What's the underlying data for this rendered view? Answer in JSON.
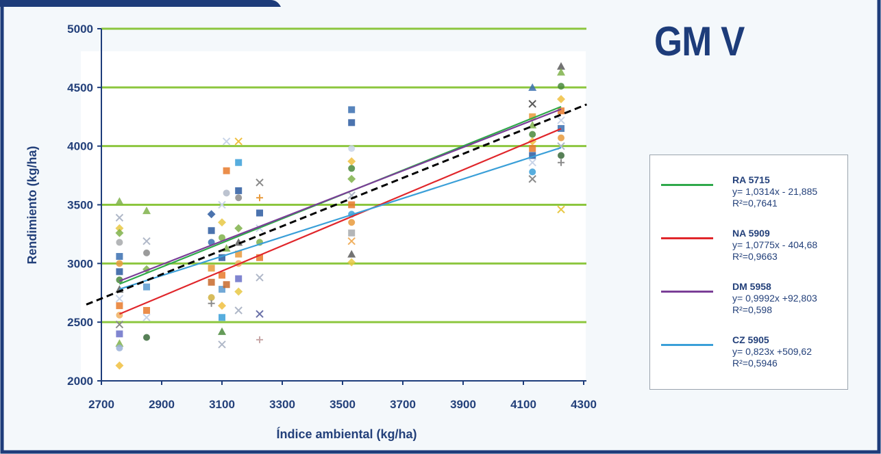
{
  "colors": {
    "frame": "#1d3c7a",
    "background": "#f4f8fb",
    "plot_area": "#ffffff",
    "gridline": "#8cc63e",
    "axis_text": "#23407a",
    "trend_dashed": "#000000"
  },
  "title": "GM V",
  "chart_data": {
    "type": "scatter",
    "title": "GM V",
    "xlabel": "Índice ambiental (kg/ha)",
    "ylabel": "Rendimiento (kg/ha)",
    "xlim": [
      2700,
      4300
    ],
    "ylim": [
      2000,
      5000
    ],
    "xticks": [
      2700,
      2900,
      3100,
      3300,
      3500,
      3700,
      3900,
      4100,
      4300
    ],
    "yticks": [
      2000,
      2500,
      3000,
      3500,
      4000,
      4500,
      5000
    ],
    "grid": "horizontal",
    "legend_position": "right",
    "series": [
      {
        "name": "RA 5715",
        "color": "#2ea84a",
        "equation": "y= 1,0314x - 21,885",
        "r2": "R²=0,7641",
        "slope": 1.0314,
        "intercept": -21.885,
        "x_range": [
          2760,
          4225
        ]
      },
      {
        "name": "NA 5909",
        "color": "#e0262b",
        "equation": "y= 1,0775x - 404,68",
        "r2": "R²=0,9663",
        "slope": 1.0775,
        "intercept": -404.68,
        "x_range": [
          2760,
          4225
        ]
      },
      {
        "name": "DM 5958",
        "color": "#7a3e97",
        "equation": "y= 0,9992x +92,803",
        "r2": "R²=0,598",
        "slope": 0.9992,
        "intercept": 92.803,
        "x_range": [
          2760,
          4225
        ]
      },
      {
        "name": "CZ 5905",
        "color": "#3a9fd8",
        "equation": "y= 0,823x +509,62",
        "r2": "R²=0,5946",
        "slope": 0.823,
        "intercept": 509.62,
        "x_range": [
          2760,
          4225
        ]
      }
    ],
    "overall_trend": {
      "style": "dashed",
      "color": "#000000",
      "x": [
        2650,
        4310
      ],
      "y": [
        2650,
        4355
      ]
    },
    "points": [
      {
        "x": 2760,
        "y": 3530,
        "c": "#7fb24a",
        "s": "tri"
      },
      {
        "x": 2760,
        "y": 3390,
        "c": "#b0b8c8",
        "s": "x"
      },
      {
        "x": 2760,
        "y": 3300,
        "c": "#e8c844",
        "s": "dia"
      },
      {
        "x": 2760,
        "y": 3260,
        "c": "#7fb24a",
        "s": "dia"
      },
      {
        "x": 2760,
        "y": 3180,
        "c": "#a7a9ac",
        "s": "circ"
      },
      {
        "x": 2760,
        "y": 3060,
        "c": "#3a6fb0",
        "s": "sq"
      },
      {
        "x": 2760,
        "y": 3000,
        "c": "#e89a3c",
        "s": "circ"
      },
      {
        "x": 2760,
        "y": 2930,
        "c": "#2c5aa0",
        "s": "sq"
      },
      {
        "x": 2760,
        "y": 2860,
        "c": "#4a8a3c",
        "s": "circ"
      },
      {
        "x": 2760,
        "y": 2780,
        "c": "#5a5a5a",
        "s": "tri"
      },
      {
        "x": 2760,
        "y": 2700,
        "c": "#c8d4e8",
        "s": "x"
      },
      {
        "x": 2760,
        "y": 2640,
        "c": "#e87a2c",
        "s": "sq"
      },
      {
        "x": 2760,
        "y": 2560,
        "c": "#f0b060",
        "s": "circ"
      },
      {
        "x": 2760,
        "y": 2480,
        "c": "#8a8a8a",
        "s": "x"
      },
      {
        "x": 2760,
        "y": 2400,
        "c": "#6a70c8",
        "s": "sq"
      },
      {
        "x": 2760,
        "y": 2320,
        "c": "#7fb24a",
        "s": "tri"
      },
      {
        "x": 2760,
        "y": 2280,
        "c": "#9ab0d8",
        "s": "circ"
      },
      {
        "x": 2760,
        "y": 2130,
        "c": "#f0c040",
        "s": "dia"
      },
      {
        "x": 2850,
        "y": 3450,
        "c": "#7fb24a",
        "s": "tri"
      },
      {
        "x": 2850,
        "y": 3190,
        "c": "#b0b8c8",
        "s": "x"
      },
      {
        "x": 2850,
        "y": 3090,
        "c": "#8a8a8a",
        "s": "circ"
      },
      {
        "x": 2850,
        "y": 2950,
        "c": "#7fb24a",
        "s": "dia"
      },
      {
        "x": 2850,
        "y": 2800,
        "c": "#5a9ad0",
        "s": "sq"
      },
      {
        "x": 2850,
        "y": 2600,
        "c": "#e87a2c",
        "s": "sq"
      },
      {
        "x": 2850,
        "y": 2540,
        "c": "#c8d4e8",
        "s": "x"
      },
      {
        "x": 2850,
        "y": 2370,
        "c": "#3a6a3a",
        "s": "circ"
      },
      {
        "x": 3065,
        "y": 3420,
        "c": "#2c5aa0",
        "s": "dia"
      },
      {
        "x": 3065,
        "y": 3280,
        "c": "#2c5aa0",
        "s": "sq"
      },
      {
        "x": 3065,
        "y": 3180,
        "c": "#3a6fb0",
        "s": "circ"
      },
      {
        "x": 3065,
        "y": 2960,
        "c": "#e89a3c",
        "s": "sq"
      },
      {
        "x": 3065,
        "y": 2840,
        "c": "#c86a2c",
        "s": "sq"
      },
      {
        "x": 3065,
        "y": 2710,
        "c": "#d0b040",
        "s": "circ"
      },
      {
        "x": 3065,
        "y": 2660,
        "c": "#8a8a8a",
        "s": "plus"
      },
      {
        "x": 3100,
        "y": 3500,
        "c": "#c8d4e8",
        "s": "x"
      },
      {
        "x": 3100,
        "y": 3350,
        "c": "#e8c844",
        "s": "dia"
      },
      {
        "x": 3100,
        "y": 3220,
        "c": "#7fb24a",
        "s": "circ"
      },
      {
        "x": 3100,
        "y": 3050,
        "c": "#2c5aa0",
        "s": "sq"
      },
      {
        "x": 3100,
        "y": 2900,
        "c": "#e87a2c",
        "s": "sq"
      },
      {
        "x": 3100,
        "y": 2780,
        "c": "#5a9ad0",
        "s": "sq"
      },
      {
        "x": 3100,
        "y": 2640,
        "c": "#f0c040",
        "s": "dia"
      },
      {
        "x": 3100,
        "y": 2540,
        "c": "#3a9fd8",
        "s": "sq"
      },
      {
        "x": 3100,
        "y": 2420,
        "c": "#4a8a3c",
        "s": "tri"
      },
      {
        "x": 3100,
        "y": 2310,
        "c": "#b0b8c8",
        "s": "x"
      },
      {
        "x": 3115,
        "y": 4040,
        "c": "#c8d4e8",
        "s": "x"
      },
      {
        "x": 3115,
        "y": 3790,
        "c": "#e87a2c",
        "s": "sq"
      },
      {
        "x": 3115,
        "y": 3600,
        "c": "#b0b8c8",
        "s": "circ"
      },
      {
        "x": 3115,
        "y": 3130,
        "c": "#7fb24a",
        "s": "tri"
      },
      {
        "x": 3115,
        "y": 2820,
        "c": "#c86a2c",
        "s": "sq"
      },
      {
        "x": 3155,
        "y": 4040,
        "c": "#f0c040",
        "s": "x"
      },
      {
        "x": 3155,
        "y": 3860,
        "c": "#3a9fd8",
        "s": "sq"
      },
      {
        "x": 3155,
        "y": 3620,
        "c": "#2c5aa0",
        "s": "sq"
      },
      {
        "x": 3155,
        "y": 3560,
        "c": "#8a8a8a",
        "s": "circ"
      },
      {
        "x": 3155,
        "y": 3300,
        "c": "#7fb24a",
        "s": "dia"
      },
      {
        "x": 3155,
        "y": 3180,
        "c": "#5a5a5a",
        "s": "tri"
      },
      {
        "x": 3155,
        "y": 3080,
        "c": "#e89a3c",
        "s": "sq"
      },
      {
        "x": 3155,
        "y": 3000,
        "c": "#f0b060",
        "s": "circ"
      },
      {
        "x": 3155,
        "y": 2870,
        "c": "#6a70c8",
        "s": "sq"
      },
      {
        "x": 3155,
        "y": 2760,
        "c": "#e8c844",
        "s": "dia"
      },
      {
        "x": 3155,
        "y": 2600,
        "c": "#b0b8c8",
        "s": "x"
      },
      {
        "x": 3225,
        "y": 3690,
        "c": "#8a8a8a",
        "s": "x"
      },
      {
        "x": 3225,
        "y": 3560,
        "c": "#e89a3c",
        "s": "plus"
      },
      {
        "x": 3225,
        "y": 3430,
        "c": "#2c5aa0",
        "s": "sq"
      },
      {
        "x": 3225,
        "y": 3300,
        "c": "#c8d4e8",
        "s": "x"
      },
      {
        "x": 3225,
        "y": 3180,
        "c": "#7fb24a",
        "s": "circ"
      },
      {
        "x": 3225,
        "y": 3050,
        "c": "#e87a2c",
        "s": "sq"
      },
      {
        "x": 3225,
        "y": 2880,
        "c": "#b0b8c8",
        "s": "x"
      },
      {
        "x": 3225,
        "y": 2570,
        "c": "#6a70a8",
        "s": "x"
      },
      {
        "x": 3225,
        "y": 2350,
        "c": "#c8a8a8",
        "s": "plus"
      },
      {
        "x": 3530,
        "y": 4310,
        "c": "#3a6fb0",
        "s": "sq"
      },
      {
        "x": 3530,
        "y": 4200,
        "c": "#2c5aa0",
        "s": "sq"
      },
      {
        "x": 3530,
        "y": 3980,
        "c": "#c8d4e8",
        "s": "circ"
      },
      {
        "x": 3530,
        "y": 3870,
        "c": "#f0c040",
        "s": "dia"
      },
      {
        "x": 3530,
        "y": 3810,
        "c": "#4a8a3c",
        "s": "circ"
      },
      {
        "x": 3530,
        "y": 3720,
        "c": "#7fb24a",
        "s": "dia"
      },
      {
        "x": 3530,
        "y": 3580,
        "c": "#b0b8c8",
        "s": "x"
      },
      {
        "x": 3530,
        "y": 3500,
        "c": "#e87a2c",
        "s": "sq"
      },
      {
        "x": 3530,
        "y": 3420,
        "c": "#3a9fd8",
        "s": "circ"
      },
      {
        "x": 3530,
        "y": 3350,
        "c": "#e89a3c",
        "s": "circ"
      },
      {
        "x": 3530,
        "y": 3260,
        "c": "#a7a9ac",
        "s": "sq"
      },
      {
        "x": 3530,
        "y": 3190,
        "c": "#f0b060",
        "s": "x"
      },
      {
        "x": 3530,
        "y": 3080,
        "c": "#5a5a5a",
        "s": "tri"
      },
      {
        "x": 3530,
        "y": 3010,
        "c": "#e8c844",
        "s": "dia"
      },
      {
        "x": 4130,
        "y": 4500,
        "c": "#3a6fb0",
        "s": "tri"
      },
      {
        "x": 4130,
        "y": 4360,
        "c": "#5a5a5a",
        "s": "x"
      },
      {
        "x": 4130,
        "y": 4250,
        "c": "#e89a3c",
        "s": "sq"
      },
      {
        "x": 4130,
        "y": 4180,
        "c": "#7fb24a",
        "s": "tri"
      },
      {
        "x": 4130,
        "y": 4100,
        "c": "#4a8a3c",
        "s": "circ"
      },
      {
        "x": 4130,
        "y": 4040,
        "c": "#f0c040",
        "s": "dia"
      },
      {
        "x": 4130,
        "y": 3980,
        "c": "#e87a2c",
        "s": "sq"
      },
      {
        "x": 4130,
        "y": 3920,
        "c": "#2c5aa0",
        "s": "sq"
      },
      {
        "x": 4130,
        "y": 3860,
        "c": "#c8d4e8",
        "s": "x"
      },
      {
        "x": 4130,
        "y": 3780,
        "c": "#3a9fd8",
        "s": "circ"
      },
      {
        "x": 4130,
        "y": 3720,
        "c": "#8a8a8a",
        "s": "x"
      },
      {
        "x": 4225,
        "y": 4680,
        "c": "#5a5a5a",
        "s": "tri"
      },
      {
        "x": 4225,
        "y": 4630,
        "c": "#7fb24a",
        "s": "tri"
      },
      {
        "x": 4225,
        "y": 4510,
        "c": "#4a8a3c",
        "s": "circ"
      },
      {
        "x": 4225,
        "y": 4400,
        "c": "#f0c040",
        "s": "dia"
      },
      {
        "x": 4225,
        "y": 4300,
        "c": "#e87a2c",
        "s": "sq"
      },
      {
        "x": 4225,
        "y": 4220,
        "c": "#c8d4e8",
        "s": "x"
      },
      {
        "x": 4225,
        "y": 4150,
        "c": "#3a6fb0",
        "s": "sq"
      },
      {
        "x": 4225,
        "y": 4070,
        "c": "#e89a3c",
        "s": "circ"
      },
      {
        "x": 4225,
        "y": 4000,
        "c": "#b0b8c8",
        "s": "x"
      },
      {
        "x": 4225,
        "y": 3920,
        "c": "#3a6a3a",
        "s": "circ"
      },
      {
        "x": 4225,
        "y": 3860,
        "c": "#8a8a8a",
        "s": "plus"
      },
      {
        "x": 4225,
        "y": 3460,
        "c": "#e8c844",
        "s": "x"
      }
    ]
  }
}
